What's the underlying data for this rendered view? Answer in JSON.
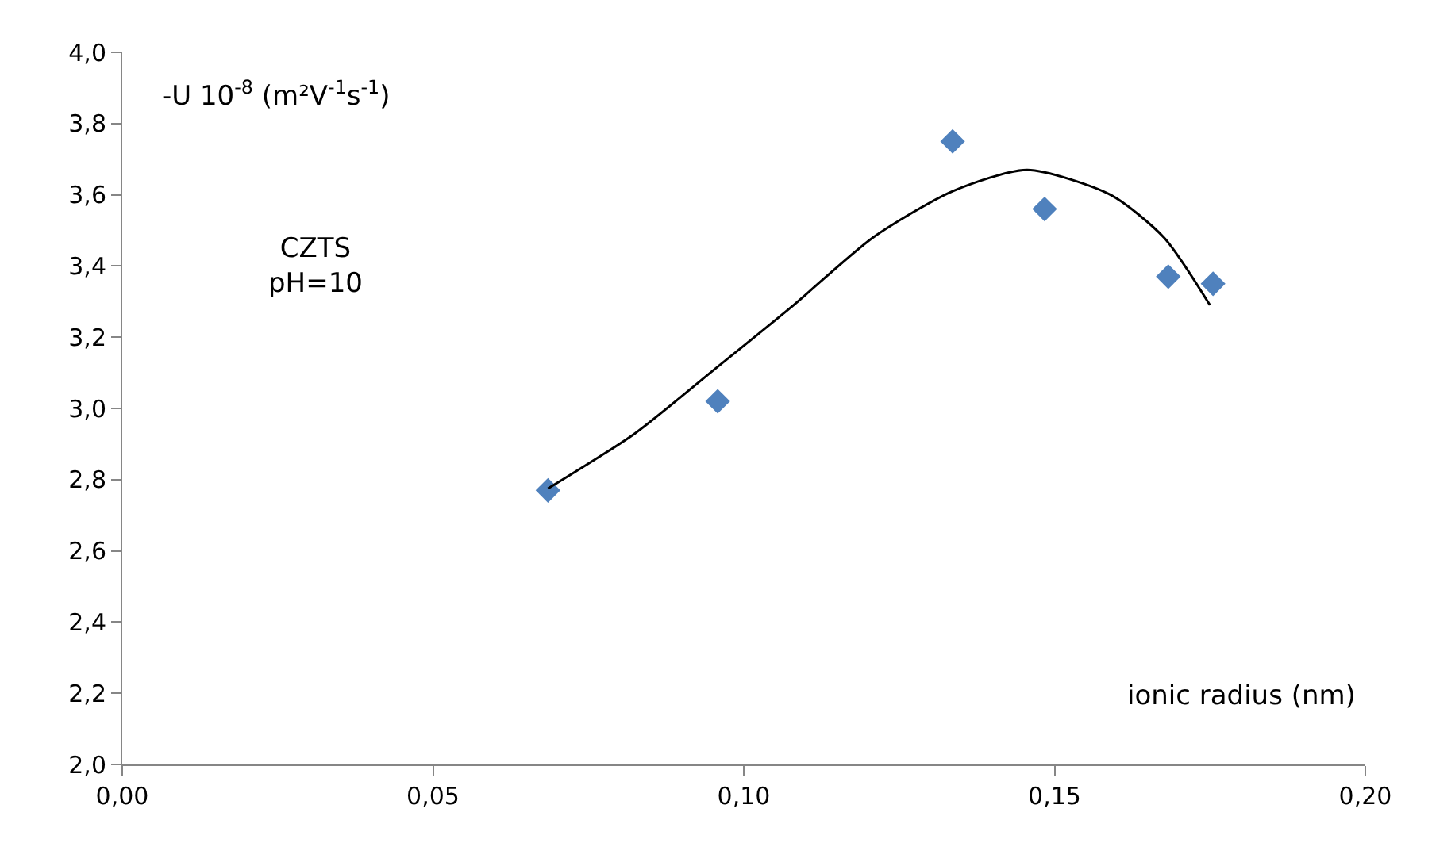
{
  "chart_data": {
    "type": "scatter",
    "ylabel": "-U 10$^{-8}$ (m²V$^{-1}$s$^{-1}$)",
    "xlabel": "ionic radius (nm)",
    "annotations": [
      "CZTS\npH=10"
    ],
    "x": [
      0.0685,
      0.0958,
      0.1336,
      0.1484,
      0.1683,
      0.1755
    ],
    "series": [
      {
        "color": "#4f81bd",
        "marker": "diamond",
        "values": [
          2.77,
          3.02,
          3.75,
          3.56,
          3.37,
          3.35
        ]
      },
      {
        "type": "line",
        "color": "#000000",
        "marker": "none",
        "x": [
          0.0685,
          0.0825,
          0.0953,
          0.108,
          0.1208,
          0.1336,
          0.1456,
          0.159,
          0.1676,
          0.175
        ],
        "values": [
          2.775,
          2.93,
          3.11,
          3.29,
          3.48,
          3.61,
          3.67,
          3.6,
          3.48,
          3.29
        ]
      }
    ],
    "xlim": [
      0,
      0.2
    ],
    "xticks": [
      {
        "value": 0,
        "label": "0,00"
      },
      {
        "value": 0.05,
        "label": "0,05"
      },
      {
        "value": 0.1,
        "label": "0,10"
      },
      {
        "value": 0.15,
        "label": "0,15"
      },
      {
        "value": 0.2,
        "label": "0,20"
      }
    ],
    "ylim": [
      2,
      4
    ],
    "yticks": [
      {
        "value": 2,
        "label": "2,0"
      },
      {
        "value": 2.2,
        "label": "2,2"
      },
      {
        "value": 2.4,
        "label": "2,4"
      },
      {
        "value": 2.6,
        "label": "2,6"
      },
      {
        "value": 2.8,
        "label": "2,8"
      },
      {
        "value": 3,
        "label": "3,0"
      },
      {
        "value": 3.2,
        "label": "3,2"
      },
      {
        "value": 3.4,
        "label": "3,4"
      },
      {
        "value": 3.6,
        "label": "3,6"
      },
      {
        "value": 3.8,
        "label": "3,8"
      },
      {
        "value": 4,
        "label": "4,0"
      }
    ],
    "grid": false
  }
}
